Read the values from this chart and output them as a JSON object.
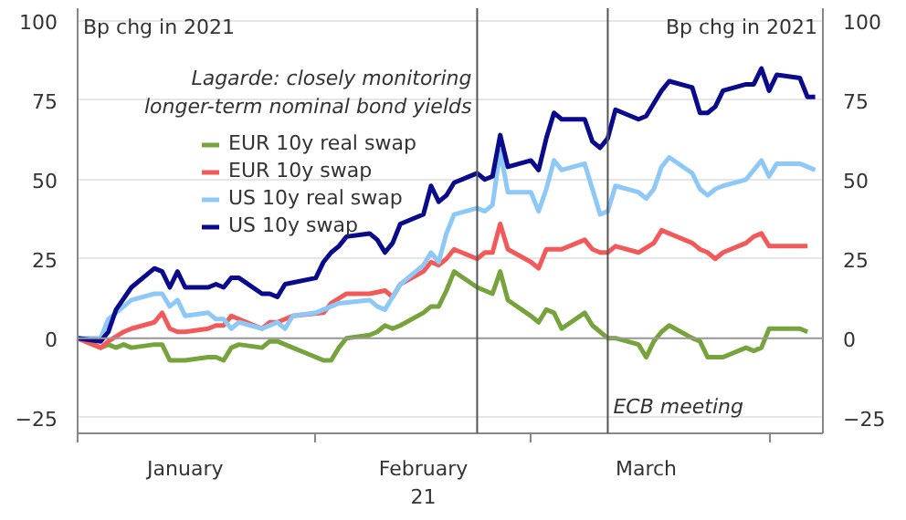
{
  "chart_data": {
    "type": "line",
    "ylabel": "Bp chg in 2021",
    "y2label": "Bp chg in 2021",
    "xlim": [
      "2021-01-01",
      "2021-04-08"
    ],
    "xticks": [
      {
        "value": "2021-01-01",
        "label": null
      },
      {
        "value": "2021-01-15",
        "label": "January"
      },
      {
        "value": "2021-02-01",
        "label": null
      },
      {
        "value": "2021-02-15",
        "label": "February\n21"
      },
      {
        "value": "2021-03-01",
        "label": null
      },
      {
        "value": "2021-03-16",
        "label": "March"
      },
      {
        "value": "2021-04-01",
        "label": null
      }
    ],
    "ylim": [
      -30,
      104
    ],
    "yticks": [
      -25,
      0,
      25,
      50,
      75,
      100
    ],
    "y2lim": [
      -30,
      104
    ],
    "y2ticks": [
      -25,
      0,
      25,
      50,
      75,
      100
    ],
    "grid": "y",
    "legend": "top left",
    "line_style": "solid",
    "ref_lines": [
      {
        "axis": "y",
        "value": 0,
        "color": "#999999"
      },
      {
        "axis": "x",
        "value": "2021-02-22",
        "label": "Lagarde: closely monitoring\nlonger-term nominal bond yields",
        "color": "#555555"
      },
      {
        "axis": "x",
        "value": "2021-03-11",
        "label": "ECB meeting",
        "color": "#555555"
      }
    ],
    "series": [
      {
        "name": "EUR 10y real swap",
        "color": "#77a33c",
        "x": [
          "2021-01-01",
          "2021-01-04",
          "2021-01-05",
          "2021-01-06",
          "2021-01-07",
          "2021-01-08",
          "2021-01-11",
          "2021-01-12",
          "2021-01-13",
          "2021-01-15",
          "2021-01-18",
          "2021-01-19",
          "2021-01-20",
          "2021-01-21",
          "2021-01-22",
          "2021-01-25",
          "2021-01-26",
          "2021-01-27",
          "2021-01-28",
          "2021-01-29",
          "2021-02-01",
          "2021-02-02",
          "2021-02-03",
          "2021-02-04",
          "2021-02-05",
          "2021-02-08",
          "2021-02-09",
          "2021-02-10",
          "2021-02-11",
          "2021-02-12",
          "2021-02-15",
          "2021-02-16",
          "2021-02-17",
          "2021-02-18",
          "2021-02-19",
          "2021-02-22",
          "2021-02-24",
          "2021-02-25",
          "2021-02-26",
          "2021-03-01",
          "2021-03-02",
          "2021-03-03",
          "2021-03-04",
          "2021-03-05",
          "2021-03-08",
          "2021-03-09",
          "2021-03-10",
          "2021-03-11",
          "2021-03-12",
          "2021-03-15",
          "2021-03-16",
          "2021-03-17",
          "2021-03-18",
          "2021-03-19",
          "2021-03-22",
          "2021-03-23",
          "2021-03-24",
          "2021-03-25",
          "2021-03-26",
          "2021-03-29",
          "2021-03-30",
          "2021-03-31",
          "2021-04-01",
          "2021-04-02",
          "2021-04-05",
          "2021-04-06"
        ],
        "values": [
          0,
          -3,
          -2,
          -3,
          -2,
          -3,
          -2,
          -2,
          -7,
          -7,
          -6,
          -6,
          -7,
          -3,
          -2,
          -3,
          -1,
          -1,
          -2,
          -3,
          -6,
          -7,
          -7,
          -3,
          0,
          1,
          2,
          4,
          3,
          4,
          8,
          10,
          10,
          15,
          21,
          16,
          14,
          21,
          12,
          7,
          5,
          9,
          8,
          3,
          8,
          4,
          2,
          0,
          0,
          -2,
          -6,
          -1,
          2,
          4,
          0,
          -1,
          -6,
          -6,
          -6,
          -3,
          -4,
          -3,
          3,
          3,
          3,
          2
        ]
      },
      {
        "name": "EUR 10y swap",
        "color": "#f25a5a",
        "x": [
          "2021-01-01",
          "2021-01-04",
          "2021-01-05",
          "2021-01-07",
          "2021-01-08",
          "2021-01-11",
          "2021-01-12",
          "2021-01-13",
          "2021-01-14",
          "2021-01-15",
          "2021-01-18",
          "2021-01-19",
          "2021-01-20",
          "2021-01-21",
          "2021-01-22",
          "2021-01-25",
          "2021-01-26",
          "2021-01-27",
          "2021-01-28",
          "2021-01-29",
          "2021-02-02",
          "2021-02-03",
          "2021-02-05",
          "2021-02-08",
          "2021-02-10",
          "2021-02-11",
          "2021-02-12",
          "2021-02-15",
          "2021-02-16",
          "2021-02-17",
          "2021-02-18",
          "2021-02-19",
          "2021-02-22",
          "2021-02-23",
          "2021-02-24",
          "2021-02-25",
          "2021-02-26",
          "2021-03-01",
          "2021-03-02",
          "2021-03-03",
          "2021-03-05",
          "2021-03-08",
          "2021-03-09",
          "2021-03-10",
          "2021-03-11",
          "2021-03-12",
          "2021-03-15",
          "2021-03-17",
          "2021-03-18",
          "2021-03-19",
          "2021-03-22",
          "2021-03-23",
          "2021-03-24",
          "2021-03-25",
          "2021-03-26",
          "2021-03-29",
          "2021-03-30",
          "2021-03-31",
          "2021-04-01",
          "2021-04-02",
          "2021-04-06"
        ],
        "values": [
          0,
          -3,
          -1,
          2,
          3,
          5,
          8,
          3,
          2,
          2,
          3,
          4,
          4,
          7,
          6,
          3,
          5,
          5,
          6,
          7,
          8,
          11,
          14,
          14,
          15,
          13,
          17,
          21,
          24,
          23,
          25,
          28,
          25,
          27,
          27,
          36,
          28,
          24,
          22,
          28,
          28,
          31,
          28,
          27,
          27,
          29,
          27,
          30,
          34,
          33,
          30,
          28,
          27,
          25,
          27,
          30,
          32,
          33,
          29,
          29,
          29
        ]
      },
      {
        "name": "US 10y real swap",
        "color": "#8ec8f7",
        "x": [
          "2021-01-01",
          "2021-01-04",
          "2021-01-05",
          "2021-01-06",
          "2021-01-08",
          "2021-01-11",
          "2021-01-12",
          "2021-01-13",
          "2021-01-14",
          "2021-01-15",
          "2021-01-18",
          "2021-01-19",
          "2021-01-20",
          "2021-01-21",
          "2021-01-22",
          "2021-01-25",
          "2021-01-26",
          "2021-01-27",
          "2021-01-28",
          "2021-01-29",
          "2021-02-01",
          "2021-02-02",
          "2021-02-04",
          "2021-02-08",
          "2021-02-09",
          "2021-02-10",
          "2021-02-11",
          "2021-02-12",
          "2021-02-15",
          "2021-02-16",
          "2021-02-17",
          "2021-02-18",
          "2021-02-19",
          "2021-02-22",
          "2021-02-23",
          "2021-02-24",
          "2021-02-25",
          "2021-02-26",
          "2021-03-01",
          "2021-03-02",
          "2021-03-03",
          "2021-03-04",
          "2021-03-05",
          "2021-03-08",
          "2021-03-09",
          "2021-03-10",
          "2021-03-11",
          "2021-03-12",
          "2021-03-15",
          "2021-03-16",
          "2021-03-17",
          "2021-03-18",
          "2021-03-19",
          "2021-03-22",
          "2021-03-23",
          "2021-03-24",
          "2021-03-25",
          "2021-03-26",
          "2021-03-29",
          "2021-03-30",
          "2021-03-31",
          "2021-04-01",
          "2021-04-02",
          "2021-04-05",
          "2021-04-07"
        ],
        "values": [
          0,
          0,
          6,
          8,
          12,
          14,
          14,
          10,
          12,
          7,
          8,
          6,
          6,
          3,
          5,
          3,
          4,
          5,
          3,
          7,
          8,
          9,
          11,
          12,
          10,
          9,
          13,
          17,
          23,
          27,
          24,
          33,
          39,
          41,
          40,
          42,
          59,
          46,
          46,
          40,
          47,
          56,
          53,
          55,
          47,
          39,
          40,
          48,
          46,
          44,
          47,
          54,
          57,
          52,
          47,
          45,
          47,
          48,
          50,
          53,
          56,
          51,
          55,
          55,
          53
        ]
      },
      {
        "name": "US 10y swap",
        "color": "#0a0a8c",
        "x": [
          "2021-01-01",
          "2021-01-04",
          "2021-01-05",
          "2021-01-06",
          "2021-01-08",
          "2021-01-11",
          "2021-01-12",
          "2021-01-13",
          "2021-01-14",
          "2021-01-15",
          "2021-01-18",
          "2021-01-19",
          "2021-01-20",
          "2021-01-21",
          "2021-01-22",
          "2021-01-25",
          "2021-01-26",
          "2021-01-27",
          "2021-01-28",
          "2021-02-01",
          "2021-02-02",
          "2021-02-03",
          "2021-02-04",
          "2021-02-05",
          "2021-02-08",
          "2021-02-09",
          "2021-02-10",
          "2021-02-11",
          "2021-02-12",
          "2021-02-15",
          "2021-02-16",
          "2021-02-17",
          "2021-02-18",
          "2021-02-19",
          "2021-02-22",
          "2021-02-23",
          "2021-02-24",
          "2021-02-25",
          "2021-02-26",
          "2021-03-01",
          "2021-03-02",
          "2021-03-03",
          "2021-03-04",
          "2021-03-05",
          "2021-03-08",
          "2021-03-09",
          "2021-03-10",
          "2021-03-11",
          "2021-03-12",
          "2021-03-15",
          "2021-03-16",
          "2021-03-17",
          "2021-03-18",
          "2021-03-19",
          "2021-03-22",
          "2021-03-23",
          "2021-03-24",
          "2021-03-25",
          "2021-03-26",
          "2021-03-29",
          "2021-03-30",
          "2021-03-31",
          "2021-04-01",
          "2021-04-02",
          "2021-04-05",
          "2021-04-06",
          "2021-04-07"
        ],
        "values": [
          0,
          -1,
          2,
          9,
          16,
          22,
          21,
          16,
          21,
          16,
          16,
          17,
          16,
          19,
          19,
          14,
          14,
          13,
          17,
          19,
          24,
          27,
          29,
          32,
          33,
          31,
          27,
          30,
          36,
          39,
          48,
          43,
          45,
          49,
          52,
          50,
          51,
          64,
          54,
          56,
          53,
          63,
          71,
          69,
          69,
          62,
          60,
          63,
          72,
          69,
          70,
          74,
          78,
          81,
          79,
          71,
          71,
          73,
          78,
          80,
          80,
          85,
          78,
          83,
          82,
          76,
          76
        ]
      }
    ]
  }
}
